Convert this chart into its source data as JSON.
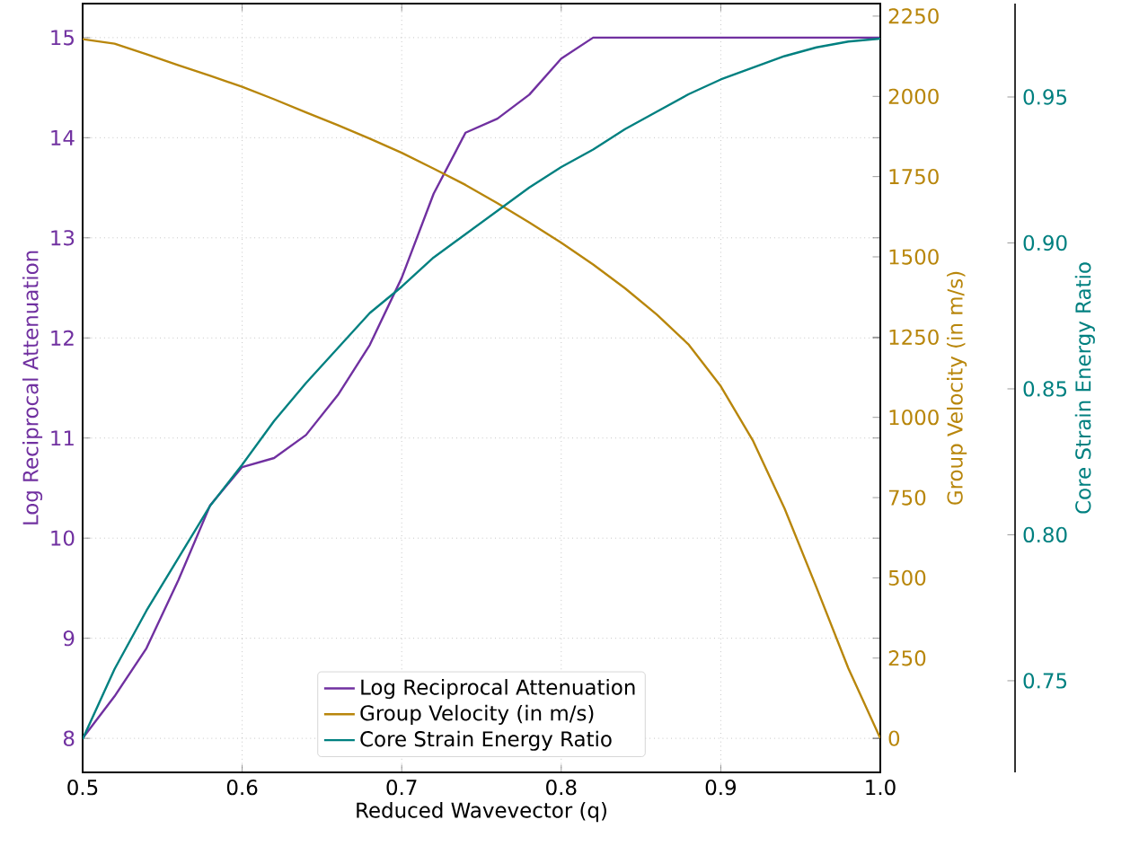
{
  "chart_data": {
    "type": "line",
    "xlabel": "Reduced Wavevector (q)",
    "ylabel": "Log Reciprocal Attenuation",
    "y2label": "Group Velocity (in m/s)",
    "y3label": "Core Strain Energy Ratio",
    "x": [
      0.5,
      0.52,
      0.54,
      0.56,
      0.58,
      0.6,
      0.62,
      0.64,
      0.66,
      0.68,
      0.7,
      0.72,
      0.74,
      0.76,
      0.78,
      0.8,
      0.82,
      0.84,
      0.86,
      0.88,
      0.9,
      0.92,
      0.94,
      0.96,
      0.98,
      1.0
    ],
    "series": [
      {
        "name": "Log Reciprocal Attenuation",
        "color": "#7030a0",
        "axis": "y",
        "values": [
          8.0,
          8.42,
          8.9,
          9.58,
          10.33,
          10.71,
          10.8,
          11.03,
          11.43,
          11.93,
          12.6,
          13.44,
          14.05,
          14.19,
          14.43,
          14.79,
          15.0,
          15.0,
          15.0,
          15.0,
          15.0,
          15.0,
          15.0,
          15.0,
          15.0,
          15.0
        ]
      },
      {
        "name": "Group Velocity (in m/s)",
        "color": "#b8860b",
        "axis": "y2",
        "values": [
          2178,
          2164,
          2131,
          2097,
          2064,
          2030,
          1991,
          1950,
          1910,
          1868,
          1824,
          1775,
          1724,
          1667,
          1607,
          1544,
          1476,
          1402,
          1320,
          1226,
          1097,
          929,
          716,
          470,
          218,
          0
        ]
      },
      {
        "name": "Core Strain Energy Ratio",
        "color": "#008080",
        "axis": "y3",
        "values": [
          0.73,
          0.754,
          0.774,
          0.792,
          0.81,
          0.824,
          0.839,
          0.852,
          0.864,
          0.876,
          0.885,
          0.895,
          0.903,
          0.911,
          0.919,
          0.926,
          0.932,
          0.939,
          0.945,
          0.951,
          0.956,
          0.96,
          0.964,
          0.967,
          0.969,
          0.97
        ]
      }
    ],
    "xlim": [
      0.5,
      1.0
    ],
    "xticks": [
      0.5,
      0.6,
      0.7,
      0.8,
      0.9,
      {
        "value": 1.0,
        "label": "1.0"
      }
    ],
    "ylim": [
      7.66,
      15.34
    ],
    "yticks": [
      8,
      9,
      10,
      11,
      12,
      13,
      14,
      15
    ],
    "y2lim": [
      -106,
      2289
    ],
    "y2ticks": [
      0,
      250,
      500,
      750,
      1000,
      1250,
      1500,
      1750,
      2000,
      2250
    ],
    "y3lim": [
      0.7186,
      0.982
    ],
    "y3ticks": [
      0.75,
      {
        "value": 0.8,
        "label": "0.80"
      },
      0.85,
      {
        "value": 0.9,
        "label": "0.90"
      },
      0.95
    ],
    "grid": true,
    "legend": "bottom"
  }
}
